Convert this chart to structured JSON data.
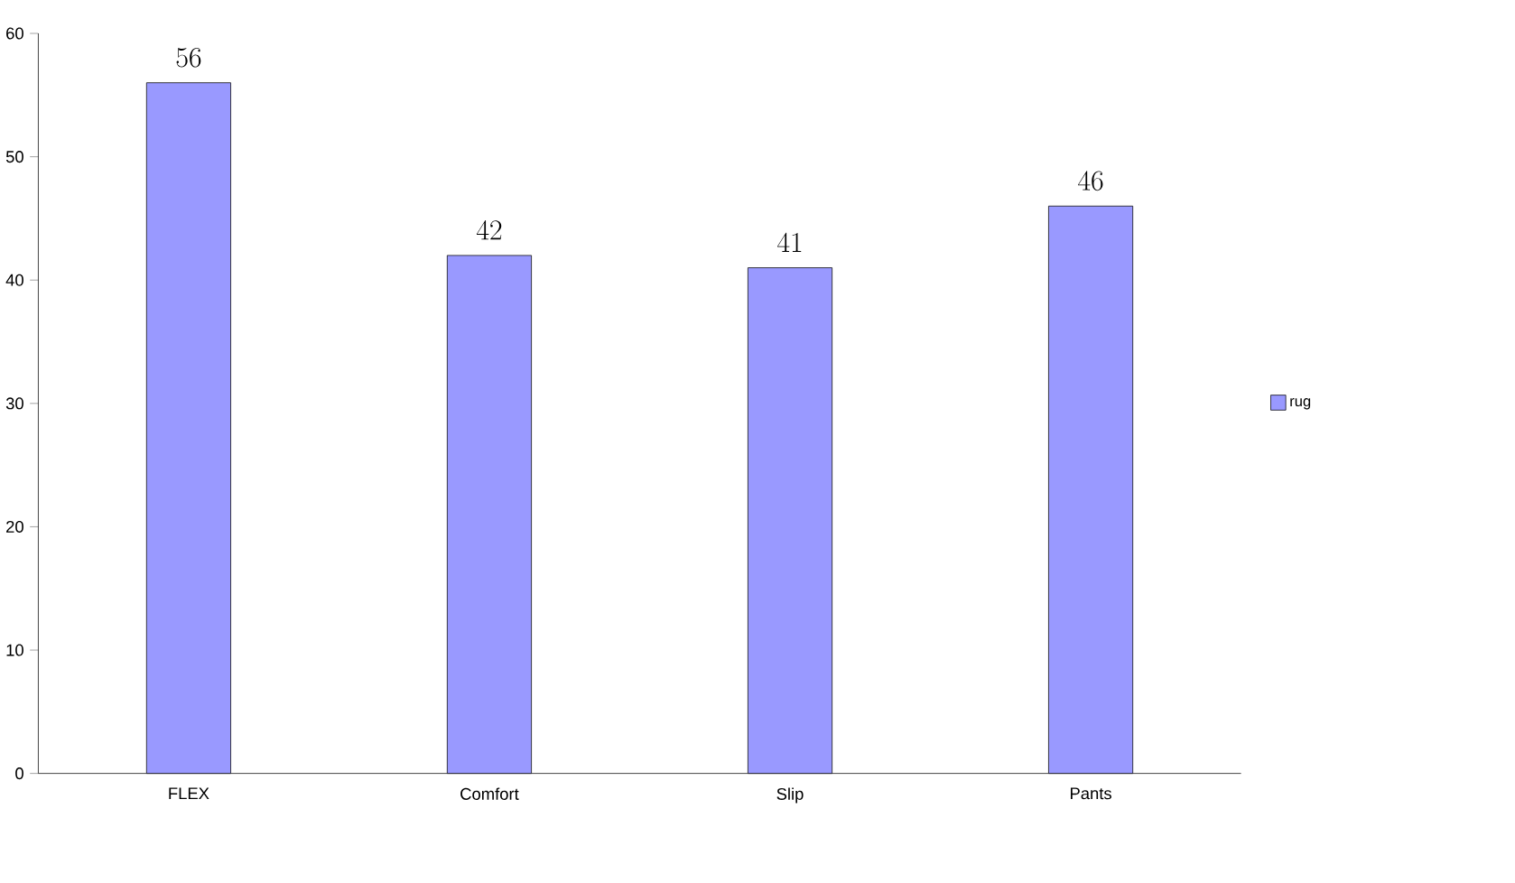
{
  "chart_data": {
    "type": "bar",
    "categories": [
      "FLEX",
      "Comfort",
      "Slip",
      "Pants"
    ],
    "series": [
      {
        "name": "rug",
        "color": "#9999ff",
        "values": [
          56,
          42,
          41,
          46
        ]
      }
    ],
    "ylim": [
      0,
      60
    ],
    "yticks": [
      0,
      10,
      20,
      30,
      40,
      50,
      60
    ],
    "data_labels": true,
    "legend": "right",
    "grid": false
  }
}
